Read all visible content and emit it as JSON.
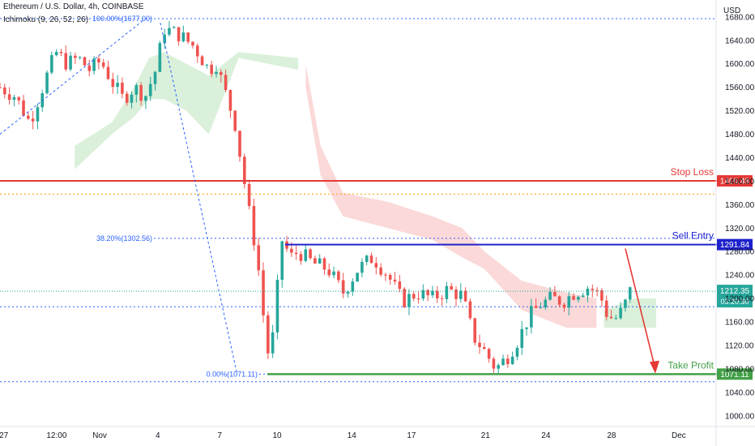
{
  "header": {
    "symbol": "Ethereum / U.S. Dollar, 4h, COINBASE",
    "indicator": "Ichimoku (9, 26, 52, 26)",
    "currency": "USD"
  },
  "chart_data": {
    "type": "candlestick",
    "yaxis": {
      "ylim": [
        990,
        1695
      ],
      "ticks": [
        1000,
        1040,
        1080,
        1120,
        1160,
        1200,
        1240,
        1280,
        1320,
        1360,
        1400,
        1440,
        1480,
        1520,
        1560,
        1600,
        1640,
        1680
      ]
    },
    "xaxis": {
      "ticks": [
        {
          "label": "27",
          "pos": 0.005
        },
        {
          "label": "12:00",
          "pos": 0.075
        },
        {
          "label": "Nov",
          "pos": 0.132
        },
        {
          "label": "4",
          "pos": 0.209
        },
        {
          "label": "7",
          "pos": 0.291
        },
        {
          "label": "10",
          "pos": 0.367
        },
        {
          "label": "14",
          "pos": 0.466
        },
        {
          "label": "17",
          "pos": 0.545
        },
        {
          "label": "21",
          "pos": 0.643
        },
        {
          "label": "24",
          "pos": 0.723
        },
        {
          "label": "28",
          "pos": 0.81
        },
        {
          "label": "Dec",
          "pos": 0.899
        }
      ]
    },
    "levels": [
      {
        "name": "Stop Loss",
        "value": 1400.48,
        "label": "1400.48",
        "color": "#e53935"
      },
      {
        "name": "Sell Entry",
        "value": 1291.84,
        "label": "1291.84",
        "color": "#1e22cc"
      },
      {
        "name": "Take Profit",
        "value": 1071.11,
        "label": "1071.11",
        "color": "#43a047"
      }
    ],
    "fib": [
      {
        "label": "100.00%(1677.00)",
        "value": 1677
      },
      {
        "label": "38.20%(1302.56)",
        "value": 1302.56
      },
      {
        "label": "0.00%(1071.11)",
        "value": 1071.11
      }
    ],
    "current": {
      "price": "1212.35",
      "countdown": "03:20:30",
      "value": 1212.35
    },
    "extra_lines": [
      1378,
      1186,
      1058
    ],
    "key_prices": [
      [
        0,
        1560
      ],
      [
        0.02,
        1545
      ],
      [
        0.04,
        1500
      ],
      [
        0.06,
        1570
      ],
      [
        0.075,
        1620
      ],
      [
        0.09,
        1600
      ],
      [
        0.105,
        1610
      ],
      [
        0.12,
        1590
      ],
      [
        0.135,
        1605
      ],
      [
        0.15,
        1570
      ],
      [
        0.165,
        1540
      ],
      [
        0.18,
        1560
      ],
      [
        0.195,
        1545
      ],
      [
        0.209,
        1590
      ],
      [
        0.22,
        1660
      ],
      [
        0.24,
        1650
      ],
      [
        0.26,
        1630
      ],
      [
        0.28,
        1590
      ],
      [
        0.29,
        1600
      ],
      [
        0.3,
        1560
      ],
      [
        0.315,
        1500
      ],
      [
        0.325,
        1420
      ],
      [
        0.335,
        1340
      ],
      [
        0.345,
        1270
      ],
      [
        0.355,
        1150
      ],
      [
        0.362,
        1085
      ],
      [
        0.37,
        1190
      ],
      [
        0.378,
        1300
      ],
      [
        0.39,
        1270
      ],
      [
        0.4,
        1280
      ],
      [
        0.42,
        1260
      ],
      [
        0.44,
        1250
      ],
      [
        0.46,
        1210
      ],
      [
        0.48,
        1250
      ],
      [
        0.5,
        1270
      ],
      [
        0.52,
        1240
      ],
      [
        0.54,
        1195
      ],
      [
        0.56,
        1210
      ],
      [
        0.58,
        1200
      ],
      [
        0.6,
        1215
      ],
      [
        0.62,
        1205
      ],
      [
        0.635,
        1135
      ],
      [
        0.65,
        1110
      ],
      [
        0.665,
        1080
      ],
      [
        0.68,
        1100
      ],
      [
        0.695,
        1130
      ],
      [
        0.71,
        1170
      ],
      [
        0.725,
        1190
      ],
      [
        0.74,
        1200
      ],
      [
        0.755,
        1195
      ],
      [
        0.77,
        1210
      ],
      [
        0.79,
        1220
      ],
      [
        0.805,
        1205
      ],
      [
        0.815,
        1170
      ],
      [
        0.825,
        1165
      ],
      [
        0.835,
        1180
      ],
      [
        0.845,
        1212
      ]
    ]
  }
}
